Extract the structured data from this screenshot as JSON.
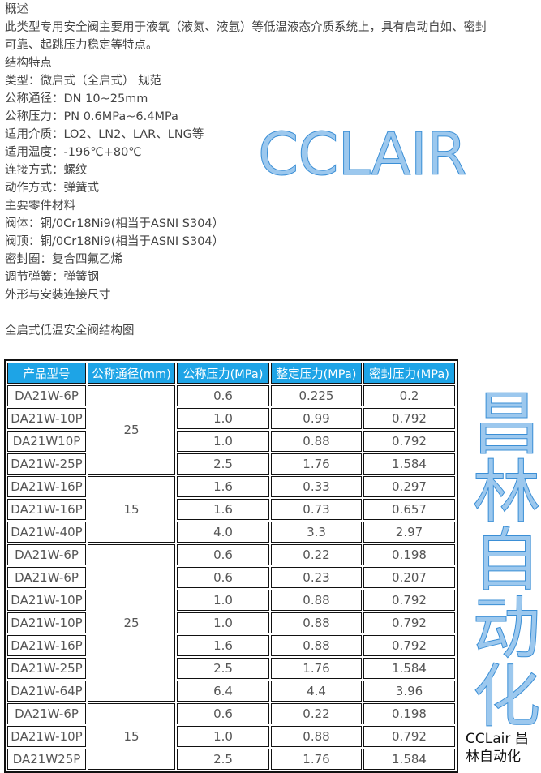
{
  "intro": {
    "lines": [
      "概述",
      "此类型专用安全阀主要用于液氧（液氮、液氩）等低温液态介质系统上，具有启动自如、密封",
      "可靠、起跳压力稳定等特点。",
      "结构特点",
      "类型：微启式（全启式） 规范",
      "公称通径：DN 10~25mm",
      "公称压力：PN 0.6MPa~6.4MPa",
      "适用介质：LO2、LN2、LAR、LNG等",
      "适用温度：-196℃+80℃",
      "连接方式：螺纹",
      "动作方式：弹簧式",
      "主要零件材料",
      "阀体：铜/0Cr18Ni9(相当于ASNI S304）",
      "阀顶：铜/0Cr18Ni9(相当于ASNI S304）",
      "密封圈：复合四氟乙烯",
      "调节弹簧：弹簧钢",
      "外形与安装连接尺寸"
    ],
    "caption": "全启式低温安全阀结构图"
  },
  "table": {
    "header_color": "#1ea4e6",
    "headers": [
      "产品型号",
      "公称通径(mm)",
      "公称压力(MPa)",
      "整定压力(MPa)",
      "密封压力(MPa)"
    ],
    "groups": [
      {
        "dn": "25",
        "rows": [
          [
            "DA21W-6P",
            "0.6",
            "0.225",
            "0.2"
          ],
          [
            "DA21W-10P",
            "1.0",
            "0.99",
            "0.792"
          ],
          [
            "DA21W10P",
            "1.0",
            "0.88",
            "0.792"
          ],
          [
            "DA21W-25P",
            "2.5",
            "1.76",
            "1.584"
          ]
        ]
      },
      {
        "dn": "15",
        "rows": [
          [
            "DA21W-16P",
            "1.6",
            "0.33",
            "0.297"
          ],
          [
            "DA21W-16P",
            "1.6",
            "0.73",
            "0.657"
          ],
          [
            "DA21W-40P",
            "4.0",
            "3.3",
            "2.97"
          ]
        ]
      },
      {
        "dn": "25",
        "rows": [
          [
            "DA21W-6P",
            "0.6",
            "0.22",
            "0.198"
          ],
          [
            "DA21W-6P",
            "0.6",
            "0.23",
            "0.207"
          ],
          [
            "DA21W-10P",
            "1.0",
            "0.88",
            "0.792"
          ],
          [
            "DA21W-10P",
            "1.0",
            "0.88",
            "0.792"
          ],
          [
            "DA21W-16P",
            "1.6",
            "0.88",
            "0.792"
          ],
          [
            "DA21W-25P",
            "2.5",
            "1.76",
            "1.584"
          ],
          [
            "DA21W-64P",
            "6.4",
            "4.4",
            "3.96"
          ]
        ]
      },
      {
        "dn": "15",
        "rows": [
          [
            "DA21W-6P",
            "0.6",
            "0.22",
            "0.198"
          ],
          [
            "DA21W-10P",
            "1.0",
            "0.88",
            "0.792"
          ],
          [
            "DA21W25P",
            "2.5",
            "1.76",
            "1.584"
          ]
        ]
      }
    ]
  },
  "watermarks": {
    "brand_large": "CCLAIR",
    "chinese_large": "昌林自动化",
    "corner": "CCLair 昌林自动化",
    "color": "#3b8fd6"
  }
}
